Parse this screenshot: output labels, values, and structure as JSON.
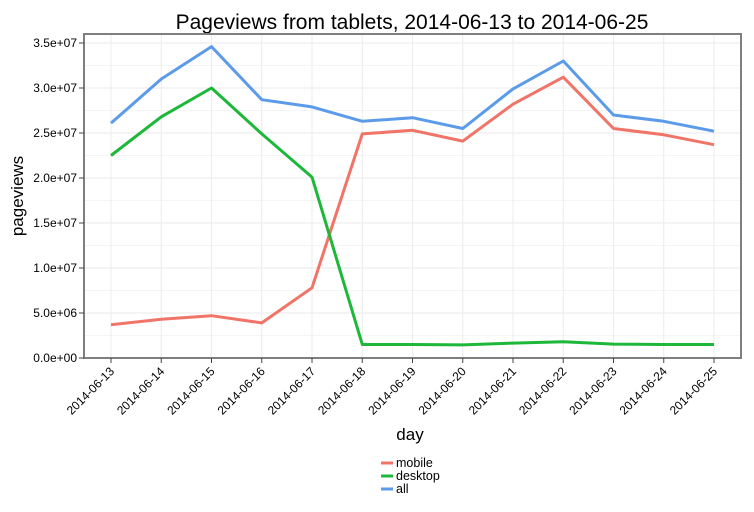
{
  "chart_data": {
    "type": "line",
    "title": "Pageviews from tablets, 2014-06-13 to 2014-06-25",
    "xlabel": "day",
    "ylabel": "pageviews",
    "categories": [
      "2014-06-13",
      "2014-06-14",
      "2014-06-15",
      "2014-06-16",
      "2014-06-17",
      "2014-06-18",
      "2014-06-19",
      "2014-06-20",
      "2014-06-21",
      "2014-06-22",
      "2014-06-23",
      "2014-06-24",
      "2014-06-25"
    ],
    "yticks": [
      0,
      5000000,
      10000000,
      15000000,
      20000000,
      25000000,
      30000000,
      35000000
    ],
    "ytick_labels": [
      "0.0e+00",
      "5.0e+06",
      "1.0e+07",
      "1.5e+07",
      "2.0e+07",
      "2.5e+07",
      "3.0e+07",
      "3.5e+07"
    ],
    "ylim": [
      0,
      36000000
    ],
    "grid": true,
    "legend_position": "bottom",
    "series": [
      {
        "name": "mobile",
        "color": "#F07468",
        "values": [
          3700000,
          4300000,
          4700000,
          3900000,
          7800000,
          24900000,
          25300000,
          24100000,
          28200000,
          31200000,
          25500000,
          24800000,
          23700000
        ]
      },
      {
        "name": "desktop",
        "color": "#1DB83A",
        "values": [
          22500000,
          26800000,
          30000000,
          24900000,
          20100000,
          1500000,
          1500000,
          1450000,
          1650000,
          1800000,
          1550000,
          1500000,
          1500000
        ]
      },
      {
        "name": "all",
        "color": "#5B9BEA",
        "values": [
          26100000,
          31000000,
          34600000,
          28700000,
          27900000,
          26300000,
          26700000,
          25500000,
          29900000,
          33000000,
          27000000,
          26300000,
          25200000
        ]
      }
    ]
  }
}
